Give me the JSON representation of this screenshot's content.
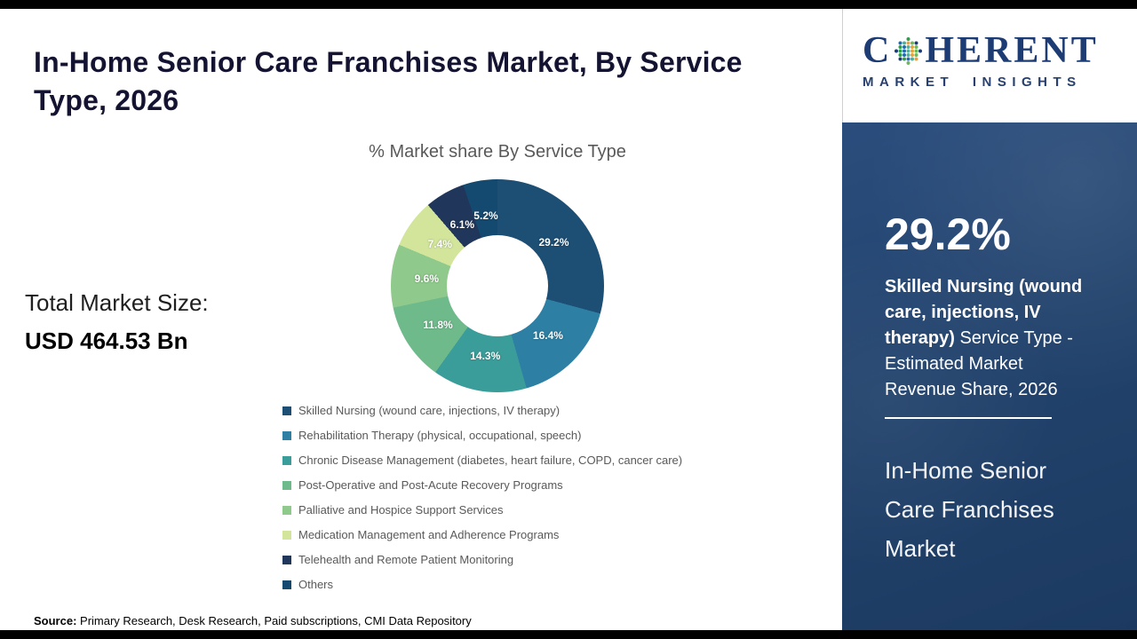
{
  "page": {
    "title": "In-Home Senior Care Franchises Market, By Service Type, 2026",
    "total_market": {
      "label": "Total Market Size:",
      "value": "USD 464.53 Bn"
    },
    "source": {
      "label": "Source:",
      "text": "Primary Research, Desk Research, Paid subscriptions, CMI Data Repository"
    }
  },
  "logo": {
    "word_start": "C",
    "word_end": "HERENT",
    "tagline": "MARKET INSIGHTS"
  },
  "chart_data": {
    "type": "pie",
    "subtype": "donut",
    "title": "% Market share By Service Type",
    "categories": [
      "Skilled Nursing (wound care, injections, IV therapy)",
      "Rehabilitation Therapy (physical, occupational, speech)",
      "Chronic Disease Management (diabetes, heart failure, COPD, cancer care)",
      "Post-Operative and Post-Acute Recovery Programs",
      "Palliative and Hospice Support Services",
      "Medication Management and Adherence Programs",
      "Telehealth and Remote Patient Monitoring",
      "Others"
    ],
    "values": [
      29.2,
      16.4,
      14.3,
      11.8,
      9.6,
      7.4,
      6.1,
      5.2
    ],
    "labels": [
      "29.2%",
      "16.4%",
      "14.3%",
      "11.8%",
      "9.6%",
      "7.4%",
      "6.1%",
      "5.2%"
    ],
    "colors": [
      "#1d4e74",
      "#2d7fa3",
      "#3a9d99",
      "#6fba8b",
      "#8fca8c",
      "#d2e59b",
      "#20365a",
      "#154a70"
    ],
    "start_angle_deg": 0,
    "direction": "clockwise",
    "legend_position": "bottom-left"
  },
  "side_panel": {
    "highlight_value": "29.2%",
    "highlight_bold": "Skilled Nursing (wound care, injections, IV therapy)",
    "highlight_rest": "Service Type - Estimated Market Revenue Share, 2026",
    "market_name": "In-Home Senior Care Franchises Market"
  }
}
